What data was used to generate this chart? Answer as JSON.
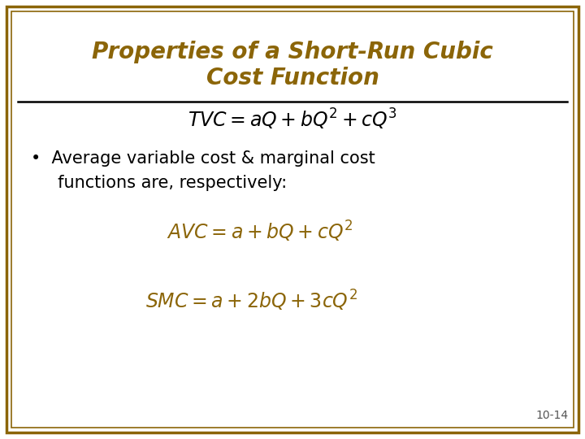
{
  "title_line1": "Properties of a Short-Run Cubic",
  "title_line2": "Cost Function",
  "title_color": "#8B6508",
  "background_color": "#FFFFFF",
  "border_outer_color": "#8B6508",
  "border_inner_color": "#8B6508",
  "formula_tvc": "$\\mathit{TVC} = \\mathit{aQ} + \\mathit{bQ}^2 + \\mathit{cQ}^3$",
  "bullet_text_line1": "•  Average variable cost & marginal cost",
  "bullet_text_line2": "     functions are, respectively:",
  "formula_avc": "$\\mathit{AVC} = \\mathit{a} + \\mathit{bQ} + \\mathit{cQ}^2$",
  "formula_smc": "$\\mathit{SMC} = \\mathit{a} + 2\\mathit{bQ} + 3\\mathit{cQ}^2$",
  "formula_color": "#8B6508",
  "tvc_color": "#000000",
  "body_text_color": "#000000",
  "slide_number": "10-14",
  "slide_number_color": "#555555",
  "title_fontsize": 20,
  "formula_tvc_fontsize": 17,
  "bullet_fontsize": 15,
  "formula_avc_fontsize": 17,
  "formula_smc_fontsize": 17,
  "slide_num_fontsize": 10
}
